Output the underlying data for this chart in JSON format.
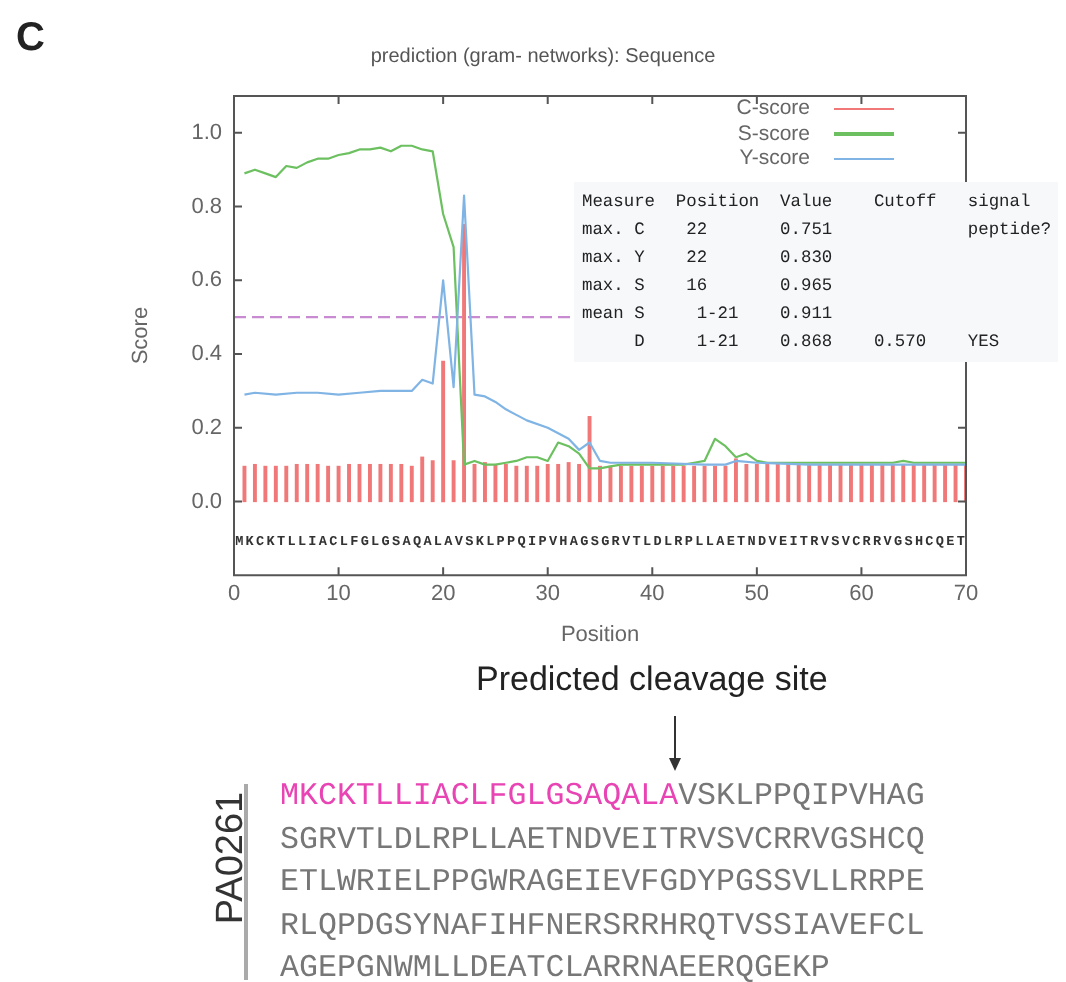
{
  "chart_data": {
    "type": "line",
    "title": "prediction (gram- networks): Sequence",
    "xlabel": "Position",
    "ylabel": "Score",
    "xlim": [
      0,
      70
    ],
    "xticks": [
      0,
      10,
      20,
      30,
      40,
      50,
      60,
      70
    ],
    "ylim": [
      -0.2,
      1.1
    ],
    "yticks": [
      {
        "value": 0,
        "label": "0.0"
      },
      0.2,
      0.4,
      0.6,
      0.8,
      {
        "value": 1,
        "label": "1.0"
      }
    ],
    "grid": false,
    "legend": "top right",
    "marker": "none",
    "ref_lines": [
      {
        "axis": "y",
        "value": 0.5,
        "color": "#c88ad0",
        "line_style": "dashed"
      }
    ],
    "series": [
      {
        "name": "C-score",
        "type": "bar",
        "color": "#f07878",
        "x": [
          1,
          2,
          3,
          4,
          5,
          6,
          7,
          8,
          9,
          10,
          11,
          12,
          13,
          14,
          15,
          16,
          17,
          18,
          19,
          20,
          21,
          22,
          23,
          24,
          25,
          26,
          27,
          28,
          29,
          30,
          31,
          32,
          33,
          34,
          35,
          36,
          37,
          38,
          39,
          40,
          41,
          42,
          43,
          44,
          45,
          46,
          47,
          48,
          49,
          50,
          51,
          52,
          53,
          54,
          55,
          56,
          57,
          58,
          59,
          60,
          61,
          62,
          63,
          64,
          65,
          66,
          67,
          68,
          69,
          70
        ],
        "values": [
          0.095,
          0.1,
          0.095,
          0.095,
          0.095,
          0.1,
          0.1,
          0.1,
          0.095,
          0.095,
          0.1,
          0.1,
          0.1,
          0.1,
          0.1,
          0.1,
          0.095,
          0.12,
          0.11,
          0.38,
          0.11,
          0.751,
          0.1,
          0.105,
          0.1,
          0.1,
          0.095,
          0.095,
          0.095,
          0.1,
          0.1,
          0.105,
          0.1,
          0.23,
          0.095,
          0.095,
          0.095,
          0.095,
          0.095,
          0.095,
          0.095,
          0.095,
          0.095,
          0.095,
          0.095,
          0.095,
          0.095,
          0.115,
          0.1,
          0.1,
          0.1,
          0.1,
          0.1,
          0.1,
          0.1,
          0.1,
          0.1,
          0.1,
          0.1,
          0.1,
          0.1,
          0.1,
          0.1,
          0.1,
          0.1,
          0.1,
          0.1,
          0.1,
          0.1,
          0.1
        ]
      },
      {
        "name": "S-score",
        "color": "#6cc060",
        "x": [
          1,
          2,
          3,
          4,
          5,
          6,
          7,
          8,
          9,
          10,
          11,
          12,
          13,
          14,
          15,
          16,
          17,
          18,
          19,
          20,
          21,
          22,
          23,
          24,
          25,
          26,
          27,
          28,
          29,
          30,
          31,
          32,
          33,
          34,
          35,
          36,
          37,
          38,
          39,
          40,
          41,
          42,
          43,
          44,
          45,
          46,
          47,
          48,
          49,
          50,
          51,
          52,
          53,
          54,
          55,
          56,
          57,
          58,
          59,
          60,
          61,
          62,
          63,
          64,
          65,
          66,
          67,
          68,
          69,
          70
        ],
        "values": [
          0.89,
          0.9,
          0.89,
          0.88,
          0.91,
          0.905,
          0.92,
          0.93,
          0.93,
          0.94,
          0.945,
          0.955,
          0.955,
          0.96,
          0.95,
          0.965,
          0.965,
          0.955,
          0.95,
          0.78,
          0.69,
          0.1,
          0.11,
          0.1,
          0.1,
          0.105,
          0.11,
          0.12,
          0.12,
          0.11,
          0.16,
          0.15,
          0.13,
          0.09,
          0.09,
          0.095,
          0.1,
          0.1,
          0.1,
          0.1,
          0.1,
          0.1,
          0.1,
          0.105,
          0.11,
          0.17,
          0.15,
          0.12,
          0.13,
          0.11,
          0.105,
          0.105,
          0.105,
          0.105,
          0.105,
          0.105,
          0.105,
          0.105,
          0.105,
          0.105,
          0.105,
          0.105,
          0.105,
          0.11,
          0.105,
          0.105,
          0.105,
          0.105,
          0.105,
          0.105
        ]
      },
      {
        "name": "Y-score",
        "color": "#80b4e4",
        "x": [
          1,
          2,
          4,
          6,
          8,
          10,
          12,
          14,
          16,
          17,
          18,
          19,
          20,
          21,
          22,
          23,
          24,
          25,
          26,
          27,
          28,
          30,
          32,
          33,
          34,
          35,
          36,
          40,
          45,
          47,
          48,
          50,
          55,
          60,
          65,
          70
        ],
        "values": [
          0.29,
          0.295,
          0.29,
          0.295,
          0.295,
          0.29,
          0.295,
          0.3,
          0.3,
          0.3,
          0.33,
          0.32,
          0.6,
          0.31,
          0.83,
          0.29,
          0.285,
          0.27,
          0.25,
          0.235,
          0.22,
          0.2,
          0.17,
          0.14,
          0.16,
          0.11,
          0.105,
          0.105,
          0.1,
          0.1,
          0.11,
          0.105,
          0.1,
          0.1,
          0.1,
          0.1
        ]
      }
    ],
    "annotations": [
      "C",
      "Measure  Position  Value    Cutoff   signal",
      "max. C    22       0.751             peptide?",
      "max. Y    22       0.830",
      "max. S    16       0.965",
      "mean S     1-21    0.911",
      "     D     1-21    0.868    0.570    YES",
      "Predicted cleavage site",
      "PA0261",
      "MKCKTLLIACLFGLGSAQALA",
      "VSKLPPQIPVHAG",
      "SGRVTLDLRPLLAETNDVEITRVSVCRRVGSHCQ",
      "ETLWRIELPPGWRAGEIEVFGDYPGSSVLLRRPE",
      "RLQPDGSYNAFIHFNERSRRHRQTVSSIAVEFCL",
      "AGEPGNWMLLDEATCLARRNAEERQGEKP",
      "MKCKTLLIACLFGLGSAQALAVSKLPPQIPVHAGSGRVTLDLRPLLAETNDVEITRVSVCRRVGSHCQET"
    ]
  }
}
